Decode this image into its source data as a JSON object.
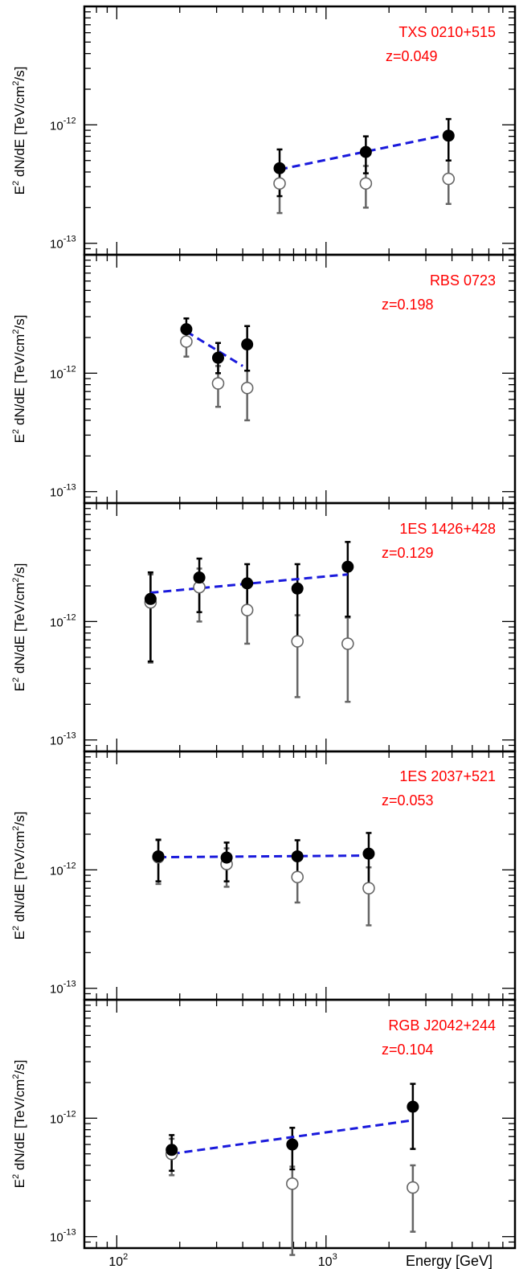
{
  "colors": {
    "observed": "#000000",
    "corrected": "#666666",
    "fit": "#1a1adc",
    "label": "#ff0000",
    "frame": "#000000"
  },
  "chart_data": [
    {
      "type": "scatter",
      "source": "TXS 0210+515",
      "redshift": "z=0.049",
      "ylabel_base": "E",
      "ylabel_exp": "2",
      "ylabel_rest": " dN/dE [TeV/cm",
      "ylabel_unit_exp": "2",
      "ylabel_tail": "/s]",
      "xscale": "log",
      "yscale": "log",
      "xlim": [
        70,
        8000
      ],
      "ylim": [
        8e-14,
        1e-11
      ],
      "observed": [
        {
          "x": 600,
          "y": 4.3e-13,
          "lo": 2.5e-13,
          "hi": 6.2e-13
        },
        {
          "x": 1550,
          "y": 5.9e-13,
          "lo": 3.9e-13,
          "hi": 8e-13
        },
        {
          "x": 3850,
          "y": 8.1e-13,
          "lo": 5e-13,
          "hi": 1.12e-12
        }
      ],
      "corrected": [
        {
          "x": 600,
          "y": 3.2e-13,
          "lo": 1.8e-13,
          "hi": 4.5e-13
        },
        {
          "x": 1550,
          "y": 3.2e-13,
          "lo": 2e-13,
          "hi": 4.5e-13
        },
        {
          "x": 3850,
          "y": 3.5e-13,
          "lo": 2.15e-13,
          "hi": 5e-13
        }
      ],
      "fit": [
        [
          600,
          4.2e-13
        ],
        [
          3850,
          8.3e-13
        ]
      ]
    },
    {
      "type": "scatter",
      "source": "RBS 0723",
      "redshift": "z=0.198",
      "ylabel_base": "E",
      "ylabel_exp": "2",
      "ylabel_rest": " dN/dE [TeV/cm",
      "ylabel_unit_exp": "2",
      "ylabel_tail": "/s]",
      "xscale": "log",
      "yscale": "log",
      "xlim": [
        70,
        8000
      ],
      "ylim": [
        8e-14,
        1e-11
      ],
      "observed": [
        {
          "x": 215,
          "y": 2.35e-12,
          "lo": 1.8e-12,
          "hi": 2.9e-12
        },
        {
          "x": 305,
          "y": 1.35e-12,
          "lo": 1e-12,
          "hi": 1.8e-12
        },
        {
          "x": 420,
          "y": 1.75e-12,
          "lo": 1.05e-12,
          "hi": 2.5e-12
        }
      ],
      "corrected": [
        {
          "x": 215,
          "y": 1.85e-12,
          "lo": 1.38e-12,
          "hi": 2.35e-12
        },
        {
          "x": 305,
          "y": 8.2e-13,
          "lo": 5.2e-13,
          "hi": 1.15e-12
        },
        {
          "x": 420,
          "y": 7.5e-13,
          "lo": 4e-13,
          "hi": 1.05e-12
        }
      ],
      "fit": [
        [
          215,
          2.25e-12
        ],
        [
          400,
          1.15e-12
        ]
      ]
    },
    {
      "type": "scatter",
      "source": "1ES 1426+428",
      "redshift": "z=0.129",
      "ylabel_base": "E",
      "ylabel_exp": "2",
      "ylabel_rest": " dN/dE [TeV/cm",
      "ylabel_unit_exp": "2",
      "ylabel_tail": "/s]",
      "xscale": "log",
      "yscale": "log",
      "xlim": [
        70,
        8000
      ],
      "ylim": [
        8e-14,
        1e-11
      ],
      "observed": [
        {
          "x": 145,
          "y": 1.55e-12,
          "lo": 4.6e-13,
          "hi": 2.6e-12
        },
        {
          "x": 248,
          "y": 2.35e-12,
          "lo": 1.2e-12,
          "hi": 3.4e-12
        },
        {
          "x": 420,
          "y": 2.1e-12,
          "lo": 1.15e-12,
          "hi": 3.05e-12
        },
        {
          "x": 730,
          "y": 1.9e-12,
          "lo": 6.5e-13,
          "hi": 3.05e-12
        },
        {
          "x": 1270,
          "y": 2.9e-12,
          "lo": 1.1e-12,
          "hi": 4.7e-12
        }
      ],
      "corrected": [
        {
          "x": 145,
          "y": 1.45e-12,
          "lo": 4.5e-13,
          "hi": 2.5e-12
        },
        {
          "x": 248,
          "y": 1.95e-12,
          "lo": 1e-12,
          "hi": 2.8e-12
        },
        {
          "x": 420,
          "y": 1.25e-12,
          "lo": 6.5e-13,
          "hi": 2e-12
        },
        {
          "x": 730,
          "y": 6.8e-13,
          "lo": 2.3e-13,
          "hi": 1.13e-12
        },
        {
          "x": 1270,
          "y": 6.5e-13,
          "lo": 2.1e-13,
          "hi": 1.08e-12
        }
      ],
      "fit": [
        [
          145,
          1.75e-12
        ],
        [
          1270,
          2.5e-12
        ]
      ]
    },
    {
      "type": "scatter",
      "source": "1ES 2037+521",
      "redshift": "z=0.053",
      "ylabel_base": "E",
      "ylabel_exp": "2",
      "ylabel_rest": " dN/dE [TeV/cm",
      "ylabel_unit_exp": "2",
      "ylabel_tail": "/s]",
      "xscale": "log",
      "yscale": "log",
      "xlim": [
        70,
        8000
      ],
      "ylim": [
        8e-14,
        1e-11
      ],
      "observed": [
        {
          "x": 158,
          "y": 1.3e-12,
          "lo": 8e-13,
          "hi": 1.8e-12
        },
        {
          "x": 335,
          "y": 1.27e-12,
          "lo": 8e-13,
          "hi": 1.7e-12
        },
        {
          "x": 730,
          "y": 1.3e-12,
          "lo": 8.2e-13,
          "hi": 1.78e-12
        },
        {
          "x": 1600,
          "y": 1.37e-12,
          "lo": 7e-13,
          "hi": 2.05e-12
        }
      ],
      "corrected": [
        {
          "x": 158,
          "y": 1.28e-12,
          "lo": 7.6e-13,
          "hi": 1.78e-12
        },
        {
          "x": 335,
          "y": 1.12e-12,
          "lo": 7.2e-13,
          "hi": 1.52e-12
        },
        {
          "x": 730,
          "y": 8.7e-13,
          "lo": 5.3e-13,
          "hi": 1.22e-12
        },
        {
          "x": 1600,
          "y": 7e-13,
          "lo": 3.4e-13,
          "hi": 1.05e-12
        }
      ],
      "fit": [
        [
          158,
          1.28e-12
        ],
        [
          1600,
          1.32e-12
        ]
      ]
    },
    {
      "type": "scatter",
      "source": "RGB J2042+244",
      "redshift": "z=0.104",
      "ylabel_base": "E",
      "ylabel_exp": "2",
      "ylabel_rest": " dN/dE [TeV/cm",
      "ylabel_unit_exp": "2",
      "ylabel_tail": "/s]",
      "xscale": "log",
      "yscale": "log",
      "xlim": [
        70,
        8000
      ],
      "ylim": [
        8e-14,
        1e-11
      ],
      "xlabel": "Energy [GeV]",
      "observed": [
        {
          "x": 183,
          "y": 5.4e-13,
          "lo": 3.6e-13,
          "hi": 7.2e-13
        },
        {
          "x": 690,
          "y": 6e-13,
          "lo": 3.7e-13,
          "hi": 8.3e-13
        },
        {
          "x": 2600,
          "y": 1.25e-12,
          "lo": 5.5e-13,
          "hi": 1.95e-12
        }
      ],
      "corrected": [
        {
          "x": 183,
          "y": 5e-13,
          "lo": 3.3e-13,
          "hi": 6.7e-13
        },
        {
          "x": 690,
          "y": 2.8e-13,
          "lo": 7e-14,
          "hi": 3.9e-13
        },
        {
          "x": 2600,
          "y": 2.6e-13,
          "lo": 1.1e-13,
          "hi": 4e-13
        }
      ],
      "fit": [
        [
          183,
          5e-13
        ],
        [
          2600,
          9.6e-13
        ]
      ]
    }
  ],
  "axis": {
    "y_tick_major": [
      {
        "value": 1e-12,
        "base": "10",
        "exp": "-12"
      },
      {
        "value": 1e-13,
        "base": "10",
        "exp": "-13"
      }
    ],
    "x_tick_major": [
      {
        "value": 100,
        "base": "10",
        "exp": "2"
      },
      {
        "value": 1000,
        "base": "10",
        "exp": "3"
      }
    ]
  }
}
